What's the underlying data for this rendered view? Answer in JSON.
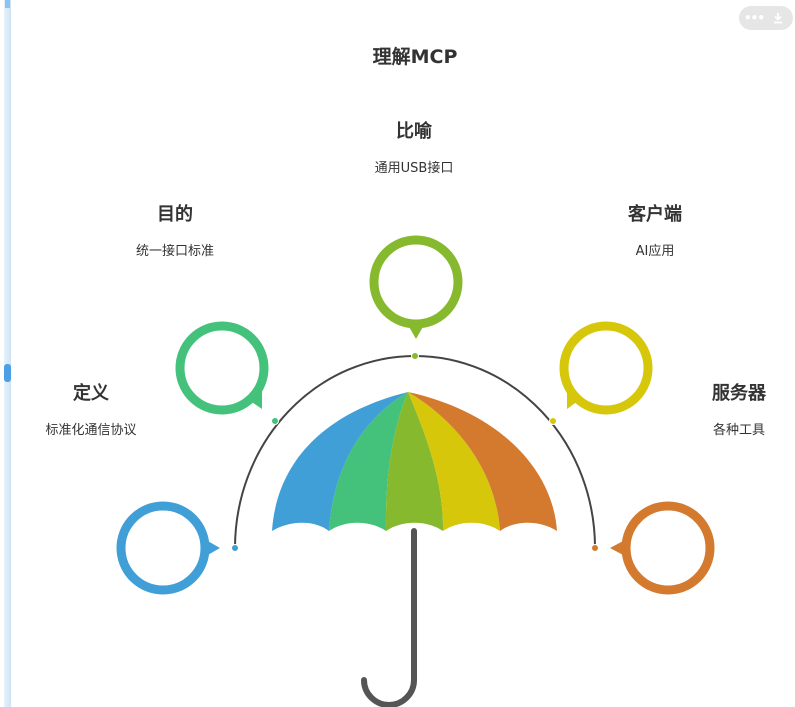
{
  "title": "理解MCP",
  "items": [
    {
      "heading": "定义",
      "sub": "标准化通信协议",
      "color": "#3f9fd6"
    },
    {
      "heading": "目的",
      "sub": "统一接口标准",
      "color": "#44c17a"
    },
    {
      "heading": "比喻",
      "sub": "通用USB接口",
      "color": "#86b92e"
    },
    {
      "heading": "客户端",
      "sub": "AI应用",
      "color": "#d6c70b"
    },
    {
      "heading": "服务器",
      "sub": "各种工具",
      "color": "#d47a2f"
    }
  ],
  "icons": {
    "more": "more-icon",
    "download": "download-icon"
  },
  "colors": {
    "arc": "#444444",
    "handle": "#555555",
    "text": "#333333"
  }
}
